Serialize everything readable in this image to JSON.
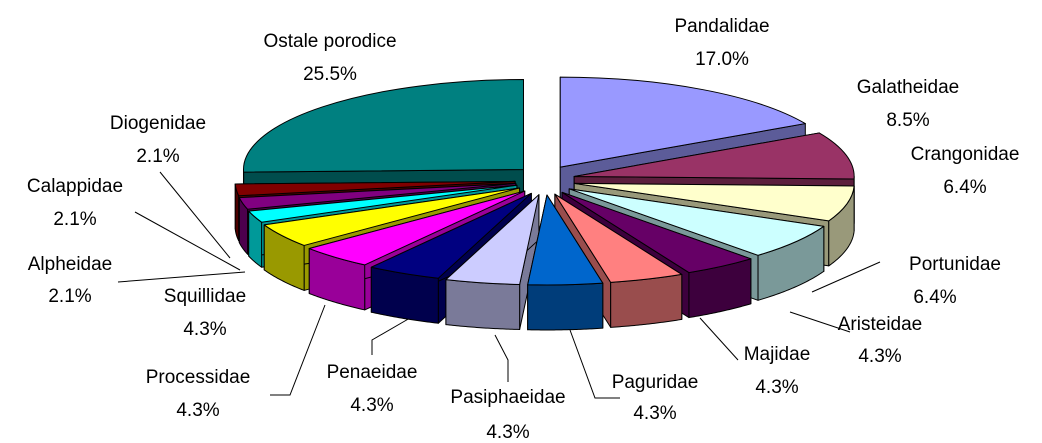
{
  "chart_data": {
    "type": "pie3d",
    "categories": [
      "Pandalidae",
      "Galatheidae",
      "Crangonidae",
      "Portunidae",
      "Aristeidae",
      "Majidae",
      "Paguridae",
      "Pasiphaeidae",
      "Penaeidae",
      "Processidae",
      "Squillidae",
      "Alpheidae",
      "Calappidae",
      "Diogenidae",
      "Ostale porodice"
    ],
    "values": [
      17.0,
      8.5,
      6.4,
      6.4,
      4.3,
      4.3,
      4.3,
      4.3,
      4.3,
      4.3,
      4.3,
      2.1,
      2.1,
      2.1,
      25.5
    ],
    "value_labels": [
      "17.0%",
      "8.5%",
      "6.4%",
      "6.4%",
      "4.3%",
      "4.3%",
      "4.3%",
      "4.3%",
      "4.3%",
      "4.3%",
      "4.3%",
      "2.1%",
      "2.1%",
      "2.1%",
      "25.5%"
    ],
    "colors": [
      "#9999ff",
      "#993366",
      "#ffffcc",
      "#ccffff",
      "#660066",
      "#ff8080",
      "#0066cc",
      "#ccccff",
      "#000080",
      "#ff00ff",
      "#ffff00",
      "#00ffff",
      "#800080",
      "#800000",
      "#008080"
    ]
  }
}
